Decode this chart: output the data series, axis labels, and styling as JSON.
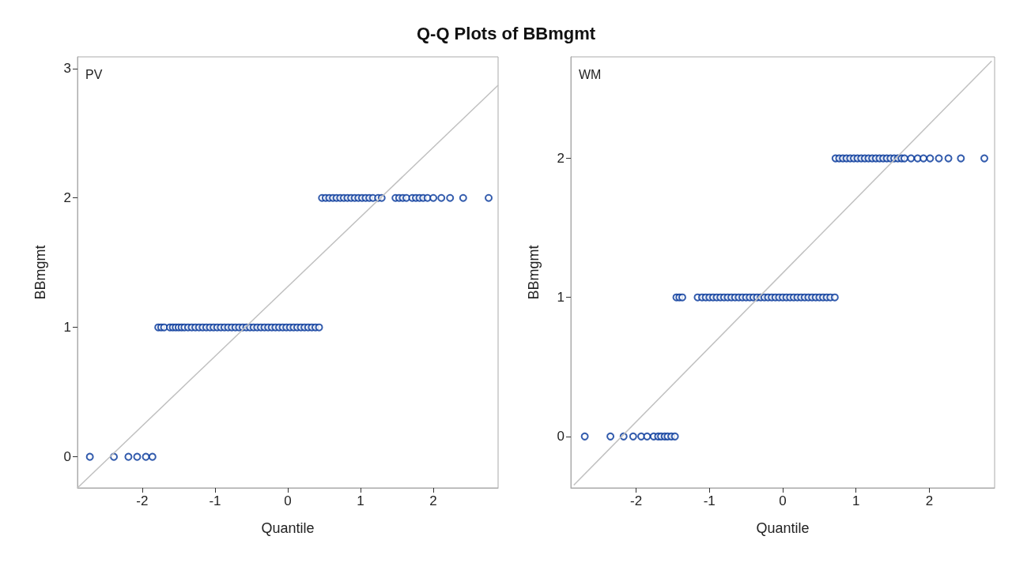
{
  "chart_data": [
    {
      "type": "scatter",
      "title": "Q-Q Plots of BBmgmt",
      "xlabel": "Quantile",
      "ylabel": "BBmgmt",
      "annotations": [
        "PV"
      ],
      "xlim": [
        -2.89,
        2.89
      ],
      "ylim": [
        -0.24,
        3.09
      ],
      "xticks": [
        -2,
        -1,
        0,
        1,
        2
      ],
      "yticks": [
        0,
        1,
        2,
        3
      ],
      "series": [
        {
          "marker": "circle",
          "color": "#003399",
          "x": [
            -2.72,
            -2.39,
            -2.19,
            -2.07,
            -1.95,
            -1.86,
            -1.78,
            -1.74,
            -1.7,
            -1.62,
            -1.58,
            -1.54,
            -1.5,
            -1.46,
            -1.42,
            -1.37,
            -1.32,
            -1.27,
            -1.22,
            -1.17,
            -1.12,
            -1.07,
            -1.02,
            -0.97,
            -0.92,
            -0.87,
            -0.82,
            -0.77,
            -0.72,
            -0.67,
            -0.62,
            -0.57,
            -0.52,
            -0.47,
            -0.42,
            -0.37,
            -0.32,
            -0.27,
            -0.22,
            -0.17,
            -0.12,
            -0.07,
            -0.02,
            0.03,
            0.08,
            0.13,
            0.18,
            0.23,
            0.28,
            0.33,
            0.38,
            0.43,
            0.47,
            0.52,
            0.57,
            0.62,
            0.67,
            0.72,
            0.77,
            0.82,
            0.87,
            0.92,
            0.97,
            1.02,
            1.07,
            1.12,
            1.17,
            1.24,
            1.29,
            1.48,
            1.53,
            1.58,
            1.63,
            1.71,
            1.76,
            1.81,
            1.86,
            1.92,
            2.0,
            2.11,
            2.23,
            2.41,
            2.76
          ],
          "values": [
            0,
            0,
            0,
            0,
            0,
            0,
            1,
            1,
            1,
            1,
            1,
            1,
            1,
            1,
            1,
            1,
            1,
            1,
            1,
            1,
            1,
            1,
            1,
            1,
            1,
            1,
            1,
            1,
            1,
            1,
            1,
            1,
            1,
            1,
            1,
            1,
            1,
            1,
            1,
            1,
            1,
            1,
            1,
            1,
            1,
            1,
            1,
            1,
            1,
            1,
            1,
            1,
            2,
            2,
            2,
            2,
            2,
            2,
            2,
            2,
            2,
            2,
            2,
            2,
            2,
            2,
            2,
            2,
            2,
            2,
            2,
            2,
            2,
            2,
            2,
            2,
            2,
            2,
            2,
            2,
            2,
            2,
            2
          ]
        },
        {
          "type": "line",
          "marker": "none",
          "color": "#c0c0c0",
          "x": [
            -2.89,
            2.89
          ],
          "values": [
            -0.24,
            2.87
          ]
        }
      ]
    },
    {
      "type": "scatter",
      "xlabel": "Quantile",
      "ylabel": "BBmgmt",
      "annotations": [
        "WM"
      ],
      "xlim": [
        -2.89,
        2.89
      ],
      "ylim": [
        -0.37,
        2.73
      ],
      "xticks": [
        -2,
        -1,
        0,
        1,
        2
      ],
      "yticks": [
        0,
        1,
        2
      ],
      "series": [
        {
          "marker": "circle",
          "color": "#003399",
          "x": [
            -2.7,
            -2.35,
            -2.17,
            -2.04,
            -1.93,
            -1.85,
            -1.76,
            -1.7,
            -1.66,
            -1.61,
            -1.57,
            -1.52,
            -1.47,
            -1.45,
            -1.41,
            -1.37,
            -1.16,
            -1.1,
            -1.05,
            -1.0,
            -0.95,
            -0.9,
            -0.85,
            -0.8,
            -0.75,
            -0.7,
            -0.65,
            -0.6,
            -0.55,
            -0.5,
            -0.45,
            -0.4,
            -0.35,
            -0.3,
            -0.25,
            -0.2,
            -0.15,
            -0.1,
            -0.05,
            0.0,
            0.05,
            0.1,
            0.15,
            0.2,
            0.25,
            0.3,
            0.35,
            0.4,
            0.45,
            0.5,
            0.55,
            0.6,
            0.65,
            0.71,
            0.72,
            0.77,
            0.82,
            0.87,
            0.92,
            0.97,
            1.02,
            1.07,
            1.12,
            1.17,
            1.22,
            1.27,
            1.32,
            1.37,
            1.42,
            1.47,
            1.52,
            1.57,
            1.62,
            1.66,
            1.75,
            1.84,
            1.92,
            2.01,
            2.13,
            2.26,
            2.43,
            2.75
          ],
          "values": [
            0,
            0,
            0,
            0,
            0,
            0,
            0,
            0,
            0,
            0,
            0,
            0,
            0,
            1,
            1,
            1,
            1,
            1,
            1,
            1,
            1,
            1,
            1,
            1,
            1,
            1,
            1,
            1,
            1,
            1,
            1,
            1,
            1,
            1,
            1,
            1,
            1,
            1,
            1,
            1,
            1,
            1,
            1,
            1,
            1,
            1,
            1,
            1,
            1,
            1,
            1,
            1,
            1,
            1,
            2,
            2,
            2,
            2,
            2,
            2,
            2,
            2,
            2,
            2,
            2,
            2,
            2,
            2,
            2,
            2,
            2,
            2,
            2,
            2,
            2,
            2,
            2,
            2,
            2,
            2,
            2,
            2
          ]
        },
        {
          "type": "line",
          "marker": "none",
          "color": "#c0c0c0",
          "x": [
            -2.85,
            2.85
          ],
          "values": [
            -0.35,
            2.7
          ]
        }
      ]
    }
  ]
}
